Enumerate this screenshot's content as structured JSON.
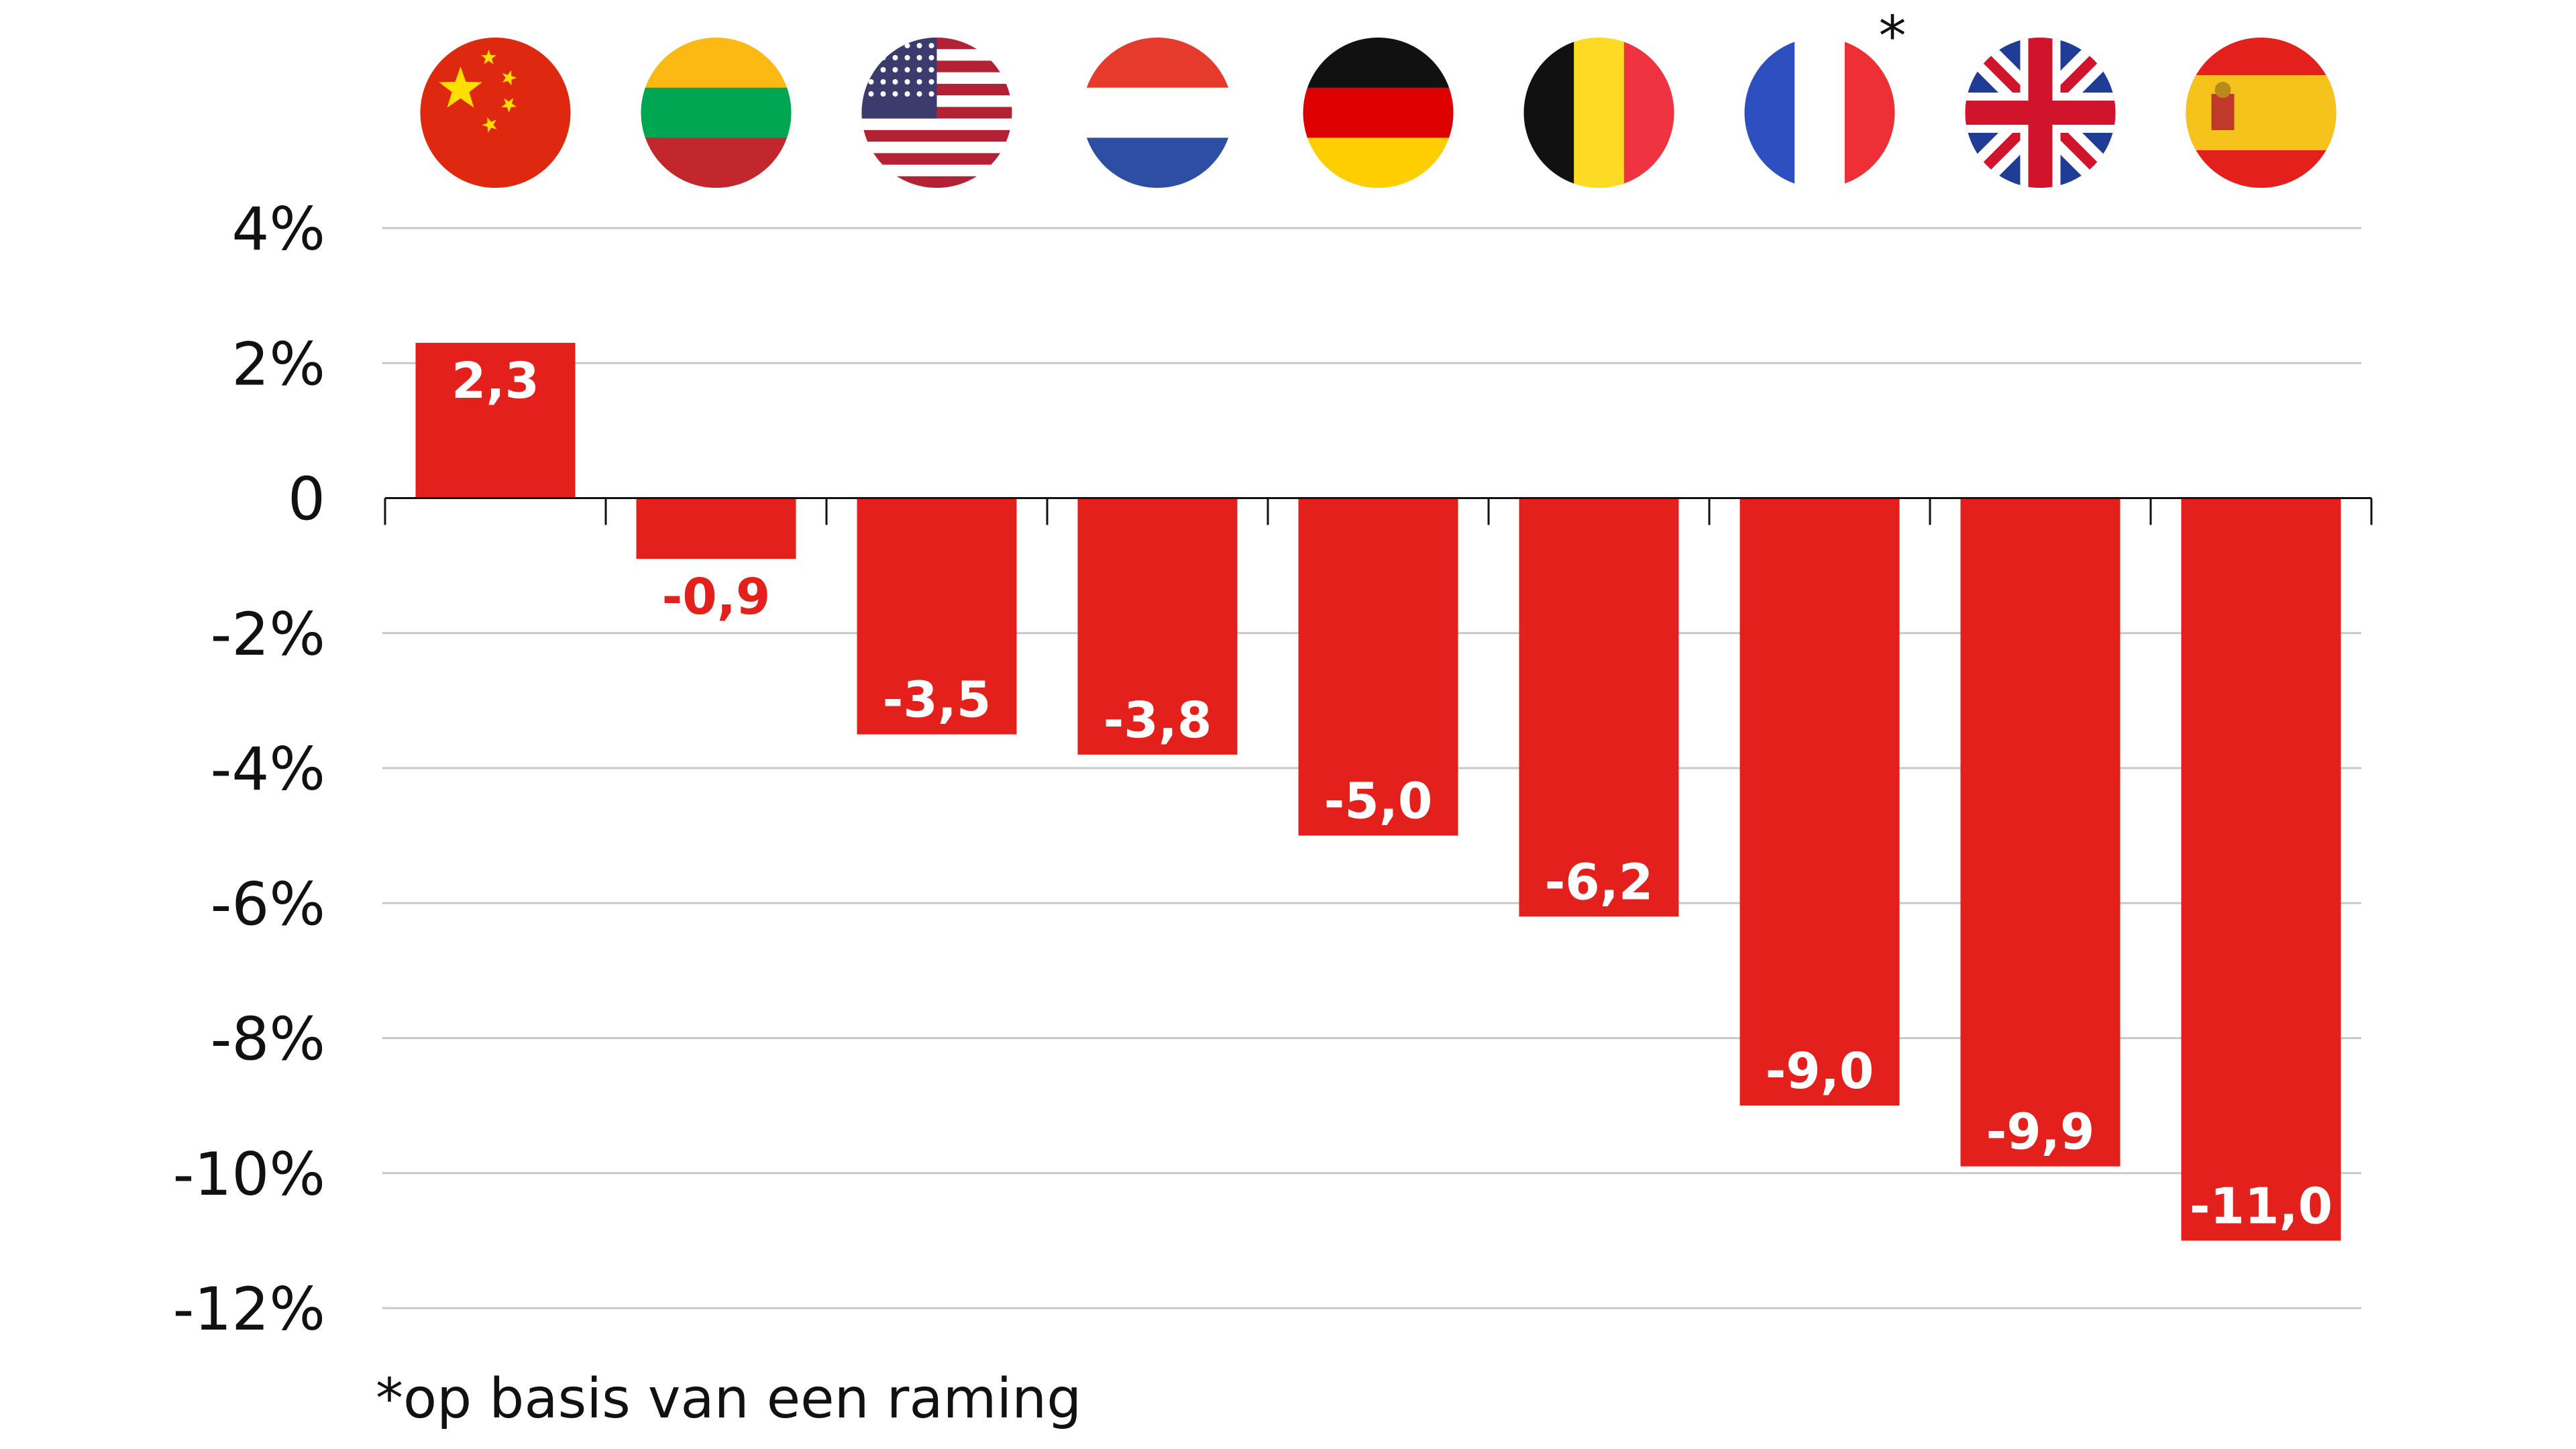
{
  "chart_data": {
    "type": "bar",
    "categories": [
      "China",
      "Litouwen",
      "Verenigde Staten",
      "Nederland",
      "Duitsland",
      "België",
      "Frankrijk",
      "Verenigd Koninkrijk",
      "Spanje"
    ],
    "category_icons": [
      "china-flag-icon",
      "lithuania-flag-icon",
      "usa-flag-icon",
      "netherlands-flag-icon",
      "germany-flag-icon",
      "belgium-flag-icon",
      "france-flag-icon",
      "uk-flag-icon",
      "spain-flag-icon"
    ],
    "values": [
      2.3,
      -0.9,
      -3.5,
      -3.8,
      -5.0,
      -6.2,
      -9.0,
      -9.9,
      -11.0
    ],
    "value_labels": [
      "2,3",
      "-0,9",
      "-3,5",
      "-3,8",
      "-5,0",
      "-6,2",
      "-9,0",
      "-9,9",
      "-11,0"
    ],
    "ylim": [
      -12,
      4
    ],
    "yticks": [
      4,
      2,
      0,
      -2,
      -4,
      -6,
      -8,
      -10,
      -12
    ],
    "ytick_labels": [
      "4%",
      "2%",
      "0",
      "-2%",
      "-4%",
      "-6%",
      "-8%",
      "-10%",
      "-12%"
    ],
    "bar_color": "#e3201b",
    "grid": true,
    "asterisk_on": "Frankrijk",
    "asterisk": "*",
    "footnote": "*op basis van een raming"
  }
}
